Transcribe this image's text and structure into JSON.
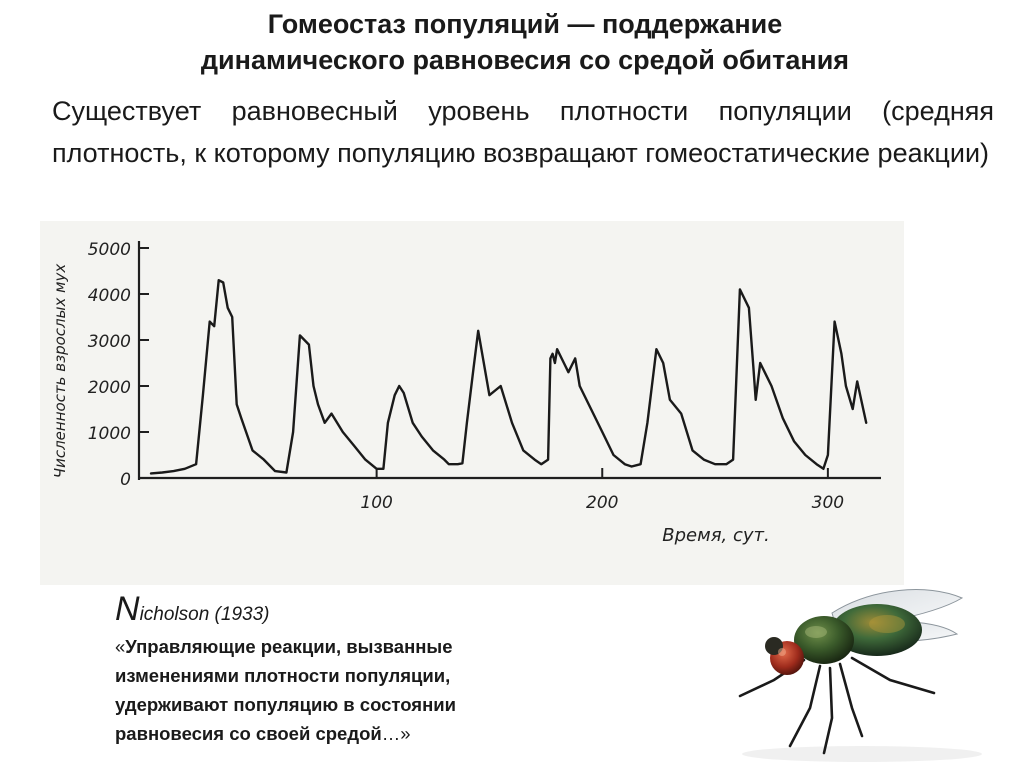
{
  "title": {
    "line1": "Гомеостаз популяций — поддержание",
    "line2": "динамического равновесия со средой обитания"
  },
  "subtitle": "Существует равновесный уровень плотности популяции (средняя плотность, к которому популяцию возвращают гомеостатические реакции)",
  "citation": {
    "author_initial": "N",
    "author_rest": "icholson",
    "year": " (1933)",
    "quote_open": "«",
    "quote_text": "Управляющие реакции, вызванные изменениями плотности популяции, удерживают популяцию в состоянии равновесия со своей средой",
    "quote_close": "…»"
  },
  "image": {
    "icon": "fly-icon"
  },
  "chart_data": {
    "type": "line",
    "xlabel": "Время, сут.",
    "ylabel": "Численность взрослых мух",
    "xlim": [
      0,
      320
    ],
    "ylim": [
      0,
      5000
    ],
    "xticks": [
      100,
      200,
      300
    ],
    "yticks": [
      0,
      1000,
      2000,
      3000,
      4000,
      5000
    ],
    "grid": false,
    "line_color": "#1a1a1a",
    "series": [
      {
        "x": [
          0,
          5,
          10,
          15,
          20,
          23,
          26,
          28,
          30,
          32,
          34,
          36,
          38,
          40,
          45,
          50,
          55,
          60,
          63,
          66,
          70,
          72,
          74,
          77,
          80,
          85,
          90,
          95,
          100,
          103,
          105,
          108,
          110,
          112,
          116,
          120,
          125,
          130,
          132,
          136,
          138,
          140,
          143,
          145,
          150,
          155,
          160,
          165,
          170,
          173,
          176,
          177,
          178,
          179,
          180,
          183,
          185,
          188,
          190,
          195,
          200,
          205,
          210,
          213,
          217,
          220,
          222,
          224,
          227,
          230,
          235,
          240,
          245,
          250,
          255,
          258,
          261,
          265,
          267,
          268,
          270,
          272,
          275,
          280,
          285,
          290,
          295,
          298,
          300,
          303,
          306,
          308,
          311,
          313,
          317
        ],
        "y": [
          100,
          120,
          150,
          200,
          300,
          1800,
          3400,
          3300,
          4300,
          4250,
          3700,
          3500,
          1600,
          1300,
          600,
          400,
          150,
          120,
          1000,
          3100,
          2900,
          2000,
          1600,
          1200,
          1400,
          1000,
          700,
          400,
          200,
          200,
          1200,
          1800,
          2000,
          1850,
          1200,
          900,
          600,
          400,
          300,
          300,
          320,
          1200,
          2400,
          3200,
          1800,
          2000,
          1200,
          600,
          400,
          300,
          400,
          2600,
          2700,
          2500,
          2800,
          2500,
          2300,
          2600,
          2000,
          1500,
          1000,
          500,
          300,
          250,
          300,
          1200,
          2000,
          2800,
          2500,
          1700,
          1400,
          600,
          400,
          300,
          300,
          400,
          4100,
          3700,
          2400,
          1700,
          2500,
          2300,
          2000,
          1300,
          800,
          500,
          300,
          200,
          500,
          3400,
          2700,
          2000,
          1500,
          2100,
          1200
        ]
      }
    ]
  }
}
